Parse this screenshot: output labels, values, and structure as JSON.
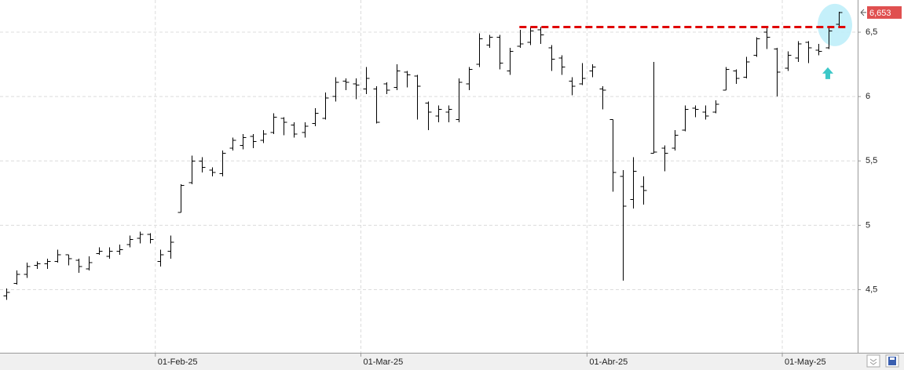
{
  "chart_data": {
    "type": "ohlc",
    "categories": [
      null,
      null,
      null,
      null,
      null,
      null,
      null,
      null,
      null,
      null,
      null,
      null,
      null,
      null,
      null,
      "01-Feb-25",
      null,
      null,
      null,
      null,
      null,
      null,
      null,
      null,
      null,
      null,
      null,
      null,
      null,
      null,
      null,
      null,
      null,
      null,
      null,
      "01-Mar-25",
      null,
      null,
      null,
      null,
      null,
      null,
      null,
      null,
      null,
      null,
      null,
      null,
      null,
      null,
      null,
      null,
      null,
      null,
      null,
      null,
      null,
      "01-Abr-25",
      null,
      null,
      null,
      null,
      null,
      null,
      null,
      null,
      null,
      null,
      null,
      null,
      null,
      null,
      null,
      null,
      null,
      null,
      "01-May-25",
      null,
      null,
      null,
      null,
      null
    ],
    "open": [
      4.45,
      4.55,
      4.62,
      4.69,
      4.7,
      4.72,
      4.77,
      4.73,
      4.66,
      4.78,
      4.76,
      4.8,
      4.85,
      4.9,
      4.93,
      4.72,
      4.8,
      5.1,
      5.33,
      5.5,
      5.43,
      5.4,
      5.6,
      5.62,
      5.69,
      5.66,
      5.72,
      5.83,
      5.78,
      5.72,
      5.79,
      5.83,
      6.0,
      6.12,
      6.1,
      6.06,
      6.06,
      6.1,
      6.07,
      6.19,
      6.16,
      5.95,
      5.85,
      5.88,
      5.82,
      6.1,
      6.25,
      6.4,
      6.46,
      6.2,
      6.39,
      6.42,
      6.52,
      6.38,
      6.3,
      6.12,
      6.1,
      6.2,
      6.06,
      5.82,
      5.38,
      5.2,
      5.3,
      5.56,
      5.6,
      5.6,
      5.74,
      5.91,
      5.88,
      5.88,
      6.05,
      6.2,
      6.15,
      6.32,
      6.5,
      6.37,
      6.22,
      6.3,
      6.42,
      6.36,
      6.38,
      6.56
    ],
    "high": [
      4.51,
      4.65,
      4.71,
      4.72,
      4.74,
      4.81,
      4.77,
      4.74,
      4.76,
      4.83,
      4.83,
      4.85,
      4.92,
      4.95,
      4.94,
      4.81,
      4.92,
      5.32,
      5.54,
      5.53,
      5.45,
      5.58,
      5.68,
      5.71,
      5.71,
      5.74,
      5.87,
      5.84,
      5.8,
      5.8,
      5.91,
      6.03,
      6.15,
      6.14,
      6.14,
      6.23,
      6.08,
      6.11,
      6.25,
      6.2,
      6.17,
      5.96,
      5.93,
      5.93,
      6.14,
      6.23,
      6.49,
      6.48,
      6.48,
      6.38,
      6.52,
      6.54,
      6.54,
      6.4,
      6.32,
      6.15,
      6.26,
      6.25,
      6.08,
      5.82,
      5.43,
      5.53,
      5.38,
      6.27,
      5.62,
      5.74,
      5.93,
      5.93,
      5.93,
      5.97,
      6.23,
      6.21,
      6.31,
      6.46,
      6.54,
      6.38,
      6.35,
      6.43,
      6.43,
      6.41,
      6.55,
      6.66
    ],
    "low": [
      4.42,
      4.54,
      4.59,
      4.66,
      4.66,
      4.71,
      4.69,
      4.63,
      4.65,
      4.77,
      4.74,
      4.77,
      4.83,
      4.86,
      4.86,
      4.68,
      4.74,
      5.1,
      5.32,
      5.41,
      5.38,
      5.38,
      5.58,
      5.59,
      5.6,
      5.64,
      5.71,
      5.7,
      5.68,
      5.68,
      5.77,
      5.82,
      5.96,
      6.05,
      5.98,
      6.02,
      5.79,
      6.02,
      6.05,
      6.07,
      5.82,
      5.74,
      5.8,
      5.8,
      5.8,
      6.05,
      6.23,
      6.38,
      6.21,
      6.17,
      6.38,
      6.4,
      6.41,
      6.2,
      6.17,
      6.01,
      6.09,
      6.15,
      5.9,
      5.26,
      4.57,
      5.13,
      5.16,
      5.56,
      5.42,
      5.58,
      5.73,
      5.84,
      5.82,
      5.87,
      6.05,
      6.1,
      6.14,
      6.31,
      6.37,
      6.0,
      6.2,
      6.27,
      6.26,
      6.32,
      6.37,
      6.54
    ],
    "close": [
      4.48,
      4.62,
      4.68,
      4.7,
      4.72,
      4.77,
      4.74,
      4.68,
      4.71,
      4.8,
      4.8,
      4.81,
      4.89,
      4.93,
      4.89,
      4.77,
      4.87,
      5.31,
      5.5,
      5.45,
      5.41,
      5.56,
      5.66,
      5.68,
      5.65,
      5.71,
      5.84,
      5.8,
      5.71,
      5.77,
      5.87,
      5.99,
      6.11,
      6.11,
      6.09,
      6.14,
      5.8,
      6.05,
      6.2,
      6.17,
      6.08,
      5.88,
      5.9,
      5.9,
      6.11,
      6.21,
      6.45,
      6.46,
      6.26,
      6.35,
      6.41,
      6.51,
      6.48,
      6.29,
      6.23,
      6.08,
      6.14,
      6.23,
      6.05,
      5.41,
      5.15,
      5.42,
      5.27,
      5.57,
      5.56,
      5.7,
      5.9,
      5.9,
      5.85,
      5.94,
      6.21,
      6.14,
      6.27,
      6.45,
      6.46,
      6.19,
      6.32,
      6.41,
      6.38,
      6.35,
      6.51,
      6.653
    ],
    "color": "#000000",
    "ylim": [
      4.01,
      6.75
    ],
    "yticks": [
      {
        "value": 4.5,
        "label": "4,5"
      },
      5,
      {
        "value": 5.5,
        "label": "5,5"
      },
      6,
      {
        "value": 6.5,
        "label": "6,5"
      }
    ],
    "grid": true,
    "last_price": {
      "value": 6.653,
      "label": "6,653",
      "color": "#e05050"
    },
    "resistance_level": {
      "value": 6.54,
      "color": "#e00000"
    },
    "highlight_color": "#bfeefa",
    "arrow_color": "#3cc8c8"
  }
}
